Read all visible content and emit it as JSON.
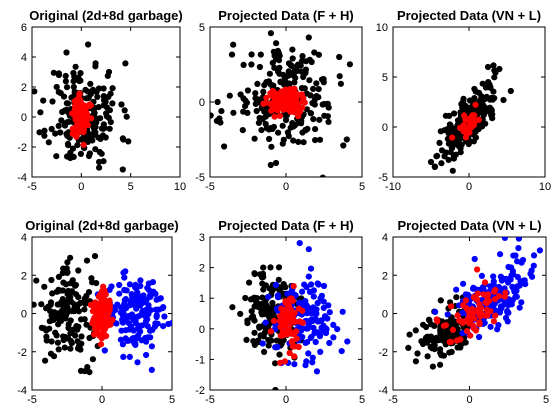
{
  "chart_data": [
    {
      "type": "scatter",
      "title": "Original (2d+8d garbage)",
      "xlim": [
        -5,
        10
      ],
      "ylim": [
        -4,
        6
      ],
      "xticks": [
        -5,
        0,
        5,
        10
      ],
      "yticks": [
        -4,
        -2,
        0,
        2,
        4,
        6
      ],
      "grid": false,
      "series": [
        {
          "color": "#000000",
          "cloud": {
            "cx": 0.3,
            "cy": 0.2,
            "sx": 1.8,
            "sy": 1.7,
            "n": 190,
            "seed": 11
          },
          "points": [
            [
              -1.5,
              4.3
            ],
            [
              4.2,
              -3.5
            ],
            [
              1.8,
              -3.0
            ],
            [
              -3.0,
              -0.8
            ],
            [
              2.8,
              3.0
            ],
            [
              -2.5,
              2.0
            ]
          ]
        },
        {
          "color": "#ff0000",
          "cloud": {
            "cx": 0.0,
            "cy": 0.0,
            "sx": 0.35,
            "sy": 0.6,
            "n": 160,
            "seed": 12
          }
        }
      ]
    },
    {
      "type": "scatter",
      "title": "Projected Data (F + H)",
      "xlim": [
        -5,
        5
      ],
      "ylim": [
        -5,
        5
      ],
      "xticks": [
        -5,
        0,
        5
      ],
      "yticks": [
        -5,
        0,
        5
      ],
      "grid": false,
      "series": [
        {
          "color": "#000000",
          "cloud": {
            "cx": 0.0,
            "cy": 0.2,
            "sx": 1.7,
            "sy": 1.7,
            "n": 230,
            "seed": 21
          },
          "points": [
            [
              1.5,
              4.3
            ],
            [
              -4.5,
              0.0
            ],
            [
              4.0,
              -2.5
            ],
            [
              -1.0,
              -4.2
            ],
            [
              3.5,
              3.0
            ]
          ]
        },
        {
          "color": "#ff0000",
          "cloud": {
            "cx": 0.0,
            "cy": 0.0,
            "sx": 0.5,
            "sy": 0.35,
            "n": 160,
            "seed": 22
          }
        }
      ]
    },
    {
      "type": "scatter",
      "title": "Projected Data (VN + L)",
      "xlim": [
        -10,
        10
      ],
      "ylim": [
        -5,
        10
      ],
      "xticks": [
        -10,
        0,
        10
      ],
      "yticks": [
        -5,
        0,
        5,
        10
      ],
      "grid": false,
      "series": [
        {
          "color": "#000000",
          "cloud": {
            "cx": 0.0,
            "cy": 0.5,
            "sx": 2.0,
            "sy": 2.0,
            "rho": 0.75,
            "n": 220,
            "seed": 31
          },
          "points": [
            [
              2.5,
              6.0
            ],
            [
              4.0,
              5.8
            ],
            [
              -4.5,
              -4.0
            ],
            [
              -5.0,
              -3.5
            ]
          ]
        },
        {
          "color": "#ff0000",
          "cloud": {
            "cx": 0.0,
            "cy": 0.5,
            "sx": 0.8,
            "sy": 0.8,
            "rho": 0.7,
            "n": 35,
            "seed": 32
          }
        }
      ]
    },
    {
      "type": "scatter",
      "title": "Original (2d+8d garbage)",
      "xlim": [
        -5,
        5
      ],
      "ylim": [
        -4,
        4
      ],
      "xticks": [
        -5,
        0,
        5
      ],
      "yticks": [
        -4,
        -2,
        0,
        2,
        4
      ],
      "grid": false,
      "series": [
        {
          "color": "#000000",
          "cloud": {
            "cx": -2.3,
            "cy": 0.0,
            "sx": 1.1,
            "sy": 1.2,
            "n": 150,
            "seed": 41
          },
          "points": [
            [
              -0.5,
              3.0
            ],
            [
              -1.5,
              -3.0
            ]
          ]
        },
        {
          "color": "#0000ff",
          "cloud": {
            "cx": 2.3,
            "cy": 0.0,
            "sx": 1.1,
            "sy": 1.1,
            "n": 150,
            "seed": 42
          },
          "points": [
            [
              4.2,
              0.8
            ],
            [
              4.0,
              0.2
            ]
          ]
        },
        {
          "color": "#ff0000",
          "cloud": {
            "cx": 0.0,
            "cy": 0.0,
            "sx": 0.35,
            "sy": 0.6,
            "n": 140,
            "seed": 43
          }
        }
      ]
    },
    {
      "type": "scatter",
      "title": "Projected Data (F + H)",
      "xlim": [
        -5,
        5
      ],
      "ylim": [
        -2,
        3
      ],
      "xticks": [
        -5,
        0,
        5
      ],
      "yticks": [
        -2,
        -1,
        0,
        1,
        2,
        3
      ],
      "grid": false,
      "series": [
        {
          "color": "#000000",
          "cloud": {
            "cx": -1.0,
            "cy": 0.5,
            "sx": 1.0,
            "sy": 0.7,
            "n": 150,
            "seed": 51
          },
          "points": [
            [
              -0.7,
              -2.0
            ],
            [
              -1.5,
              2.0
            ]
          ]
        },
        {
          "color": "#0000ff",
          "cloud": {
            "cx": 1.2,
            "cy": 0.3,
            "sx": 1.0,
            "sy": 0.7,
            "n": 150,
            "seed": 52
          },
          "points": [
            [
              0.9,
              2.8
            ],
            [
              1.5,
              2.6
            ],
            [
              2.5,
              1.4
            ]
          ]
        },
        {
          "color": "#ff0000",
          "cloud": {
            "cx": 0.2,
            "cy": 0.2,
            "sx": 0.45,
            "sy": 0.55,
            "n": 70,
            "seed": 53
          }
        }
      ]
    },
    {
      "type": "scatter",
      "title": "Projected Data (VN + L)",
      "xlim": [
        -5,
        5
      ],
      "ylim": [
        -4,
        4
      ],
      "xticks": [
        -5,
        0,
        5
      ],
      "yticks": [
        -4,
        -2,
        0,
        2,
        4
      ],
      "grid": false,
      "series": [
        {
          "color": "#000000",
          "cloud": {
            "cx": -1.3,
            "cy": -0.8,
            "sx": 1.0,
            "sy": 0.8,
            "rho": 0.5,
            "n": 150,
            "seed": 61
          },
          "points": [
            [
              -3.5,
              -2.5
            ],
            [
              -4.0,
              -1.8
            ]
          ]
        },
        {
          "color": "#0000ff",
          "cloud": {
            "cx": 1.5,
            "cy": 0.9,
            "sx": 1.2,
            "sy": 0.9,
            "rho": 0.5,
            "n": 160,
            "seed": 62
          },
          "points": [
            [
              4.6,
              3.3
            ],
            [
              3.5,
              2.8
            ],
            [
              4.2,
              2.5
            ],
            [
              2.0,
              3.1
            ]
          ]
        },
        {
          "color": "#ff0000",
          "cloud": {
            "cx": 0.2,
            "cy": 0.0,
            "sx": 0.9,
            "sy": 0.7,
            "rho": 0.5,
            "n": 70,
            "seed": 63
          },
          "points": [
            [
              0.5,
              2.3
            ]
          ]
        }
      ]
    }
  ]
}
